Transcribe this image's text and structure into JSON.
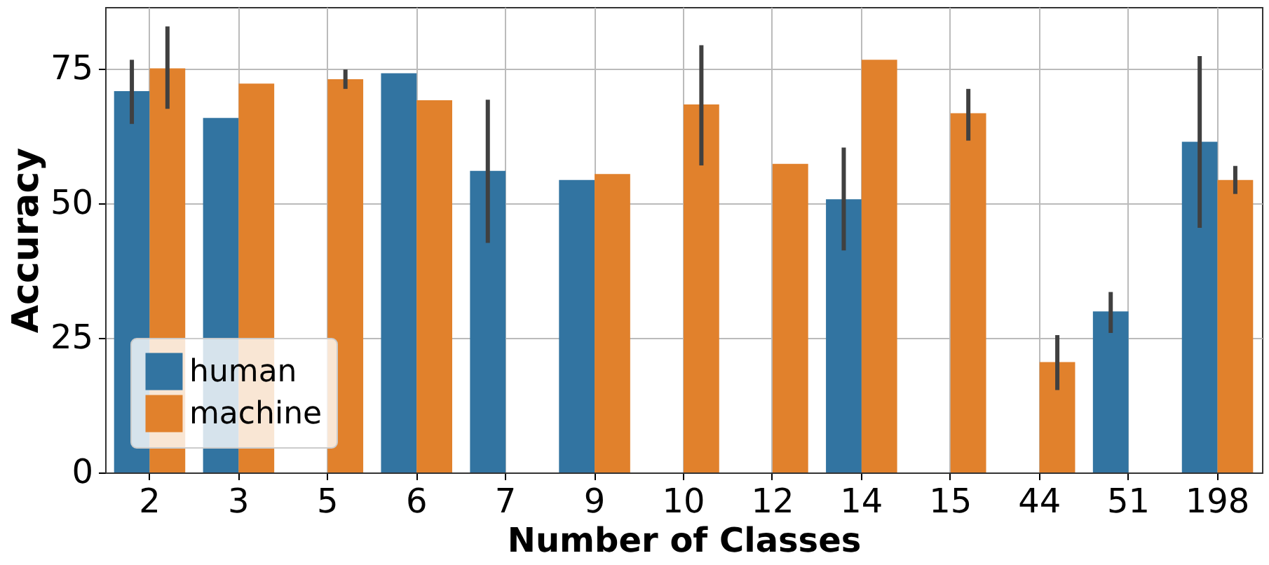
{
  "chart_data": {
    "type": "bar",
    "xlabel": "Number of Classes",
    "ylabel": "Accuracy",
    "categories": [
      "2",
      "3",
      "5",
      "6",
      "7",
      "9",
      "10",
      "12",
      "14",
      "15",
      "44",
      "51",
      "198"
    ],
    "series": [
      {
        "name": "human",
        "color": "#3274a1",
        "values": [
          70.8,
          65.8,
          null,
          74.1,
          56.0,
          54.3,
          null,
          null,
          50.7,
          null,
          null,
          29.9,
          61.4
        ],
        "errors": [
          [
            64.7,
            76.6
          ],
          null,
          null,
          null,
          [
            42.6,
            69.2
          ],
          null,
          null,
          null,
          [
            41.2,
            60.3
          ],
          null,
          null,
          [
            25.9,
            33.5
          ],
          [
            45.4,
            77.3
          ]
        ]
      },
      {
        "name": "machine",
        "color": "#e1812c",
        "values": [
          75.0,
          72.2,
          73.0,
          69.1,
          null,
          55.4,
          68.3,
          57.3,
          76.6,
          66.7,
          20.5,
          null,
          54.3
        ],
        "errors": [
          [
            67.5,
            82.8
          ],
          null,
          [
            71.2,
            74.8
          ],
          null,
          null,
          null,
          [
            57.0,
            79.3
          ],
          null,
          null,
          [
            61.6,
            71.2
          ],
          [
            15.3,
            25.5
          ],
          null,
          [
            51.7,
            56.9
          ]
        ]
      }
    ],
    "ylim": [
      0,
      86.4
    ],
    "yticks": [
      0,
      25,
      50,
      75
    ],
    "grid": true,
    "legend": "bottom left"
  }
}
